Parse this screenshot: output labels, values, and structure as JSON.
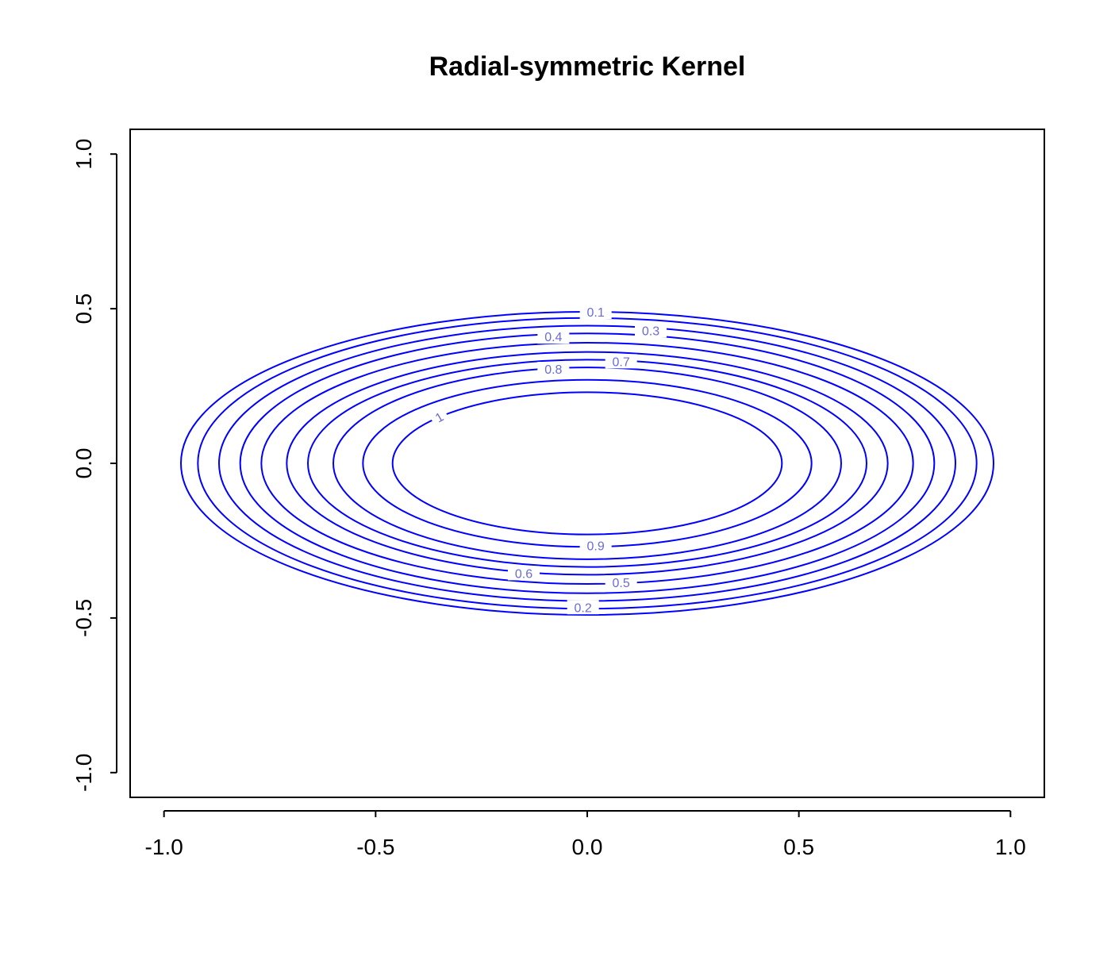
{
  "chart_data": {
    "type": "contour",
    "title": "Radial-symmetric Kernel",
    "xlabel": "",
    "ylabel": "",
    "xlim": [
      -1.08,
      1.08
    ],
    "ylim": [
      -1.08,
      1.08
    ],
    "x_ticks": [
      -1.0,
      -0.5,
      0.0,
      0.5,
      1.0
    ],
    "x_tick_labels": [
      "-1.0",
      "-0.5",
      "0.0",
      "0.5",
      "1.0"
    ],
    "y_ticks": [
      -1.0,
      -0.5,
      0.0,
      0.5,
      1.0
    ],
    "y_tick_labels": [
      "-1.0",
      "-0.5",
      "0.0",
      "0.5",
      "1.0"
    ],
    "grid": false,
    "line_color": "#0000ff",
    "label_color": "#6b6bd6",
    "levels": [
      {
        "level": 0.1,
        "label": "0.1",
        "semi_x": 0.96,
        "semi_y": 0.49,
        "label_at": [
          0.02,
          0.49
        ]
      },
      {
        "level": 0.2,
        "label": "0.2",
        "semi_x": 0.92,
        "semi_y": 0.47,
        "label_at": [
          -0.01,
          -0.465
        ]
      },
      {
        "level": 0.3,
        "label": "0.3",
        "semi_x": 0.87,
        "semi_y": 0.445,
        "label_at": [
          0.15,
          0.43
        ]
      },
      {
        "level": 0.4,
        "label": "0.4",
        "semi_x": 0.82,
        "semi_y": 0.42,
        "label_at": [
          -0.08,
          0.41
        ]
      },
      {
        "level": 0.5,
        "label": "0.5",
        "semi_x": 0.77,
        "semi_y": 0.39,
        "label_at": [
          0.08,
          -0.385
        ]
      },
      {
        "level": 0.6,
        "label": "0.6",
        "semi_x": 0.71,
        "semi_y": 0.36,
        "label_at": [
          -0.15,
          -0.355
        ]
      },
      {
        "level": 0.7,
        "label": "0.7",
        "semi_x": 0.66,
        "semi_y": 0.335,
        "label_at": [
          0.08,
          0.33
        ]
      },
      {
        "level": 0.8,
        "label": "0.8",
        "semi_x": 0.6,
        "semi_y": 0.31,
        "label_at": [
          -0.08,
          0.305
        ]
      },
      {
        "level": 0.9,
        "label": "0.9",
        "semi_x": 0.53,
        "semi_y": 0.27,
        "label_at": [
          0.02,
          -0.265
        ]
      },
      {
        "level": 1.0,
        "label": "1",
        "semi_x": 0.46,
        "semi_y": 0.23,
        "label_at": [
          -0.35,
          0.15
        ],
        "label_rotate": -30
      }
    ]
  }
}
